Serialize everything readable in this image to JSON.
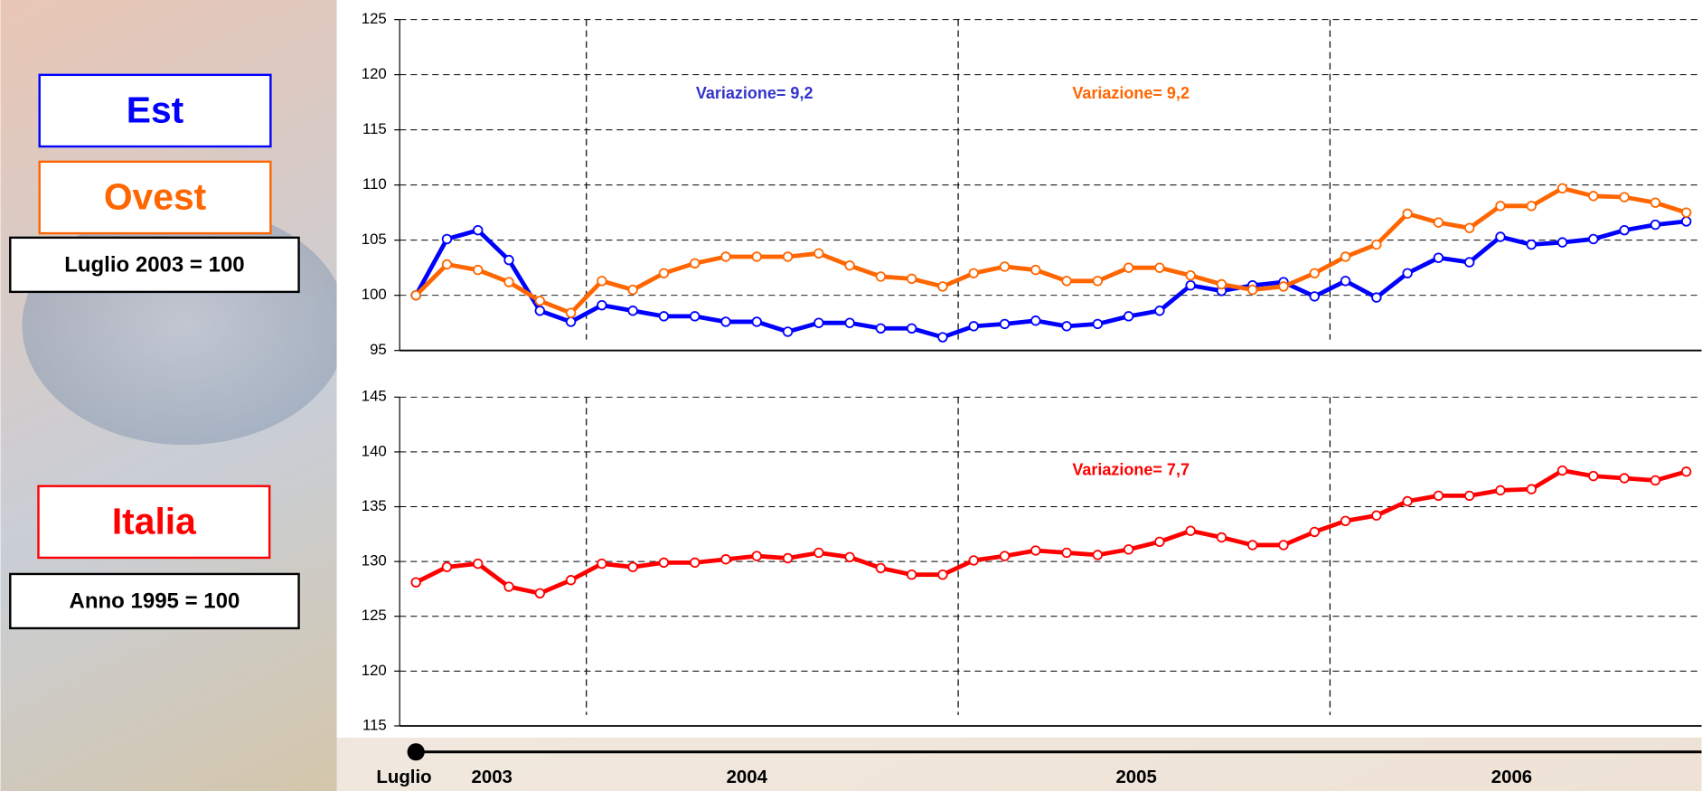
{
  "chart_data": [
    {
      "type": "line",
      "categories": [
        null,
        null,
        null,
        null,
        null,
        null,
        null,
        null,
        null,
        null,
        null,
        null,
        null,
        null,
        null,
        null,
        null,
        null,
        null,
        null,
        null,
        null,
        null,
        null,
        null,
        null,
        null,
        null,
        null,
        null,
        null,
        null,
        null,
        null,
        null,
        null,
        null,
        null,
        null,
        null,
        null,
        null
      ],
      "series": [
        {
          "name": "Est",
          "color": "#0000ff",
          "values": [
            100.0,
            105.1,
            105.9,
            103.2,
            98.6,
            97.6,
            99.1,
            98.6,
            98.1,
            98.1,
            97.6,
            97.6,
            96.7,
            97.5,
            97.5,
            97.0,
            97.0,
            96.2,
            97.2,
            97.4,
            97.7,
            97.2,
            97.4,
            98.1,
            98.6,
            100.9,
            100.4,
            100.9,
            101.2,
            99.9,
            101.3,
            99.8,
            102.0,
            103.4,
            103.0,
            105.3,
            104.6,
            104.8,
            105.1,
            105.9,
            106.4,
            106.7
          ]
        },
        {
          "name": "Ovest",
          "color": "#ff6600",
          "values": [
            100.0,
            102.8,
            102.3,
            101.2,
            99.5,
            98.4,
            101.3,
            100.5,
            102.0,
            102.9,
            103.5,
            103.5,
            103.5,
            103.8,
            102.7,
            101.7,
            101.5,
            100.8,
            102.0,
            102.6,
            102.3,
            101.3,
            101.3,
            102.5,
            102.5,
            101.8,
            101.0,
            100.5,
            100.8,
            102.0,
            103.5,
            104.6,
            107.4,
            106.6,
            106.1,
            108.1,
            108.1,
            109.7,
            109.0,
            108.9,
            108.4,
            107.5
          ]
        }
      ],
      "ylim": [
        95,
        125
      ],
      "yticks": [
        95,
        100,
        105,
        110,
        115,
        120,
        125
      ],
      "grid": true,
      "annotations": [
        {
          "text": "Variazione= 9,2",
          "color": "#3333cc"
        },
        {
          "text": "Variazione= 9,2",
          "color": "#ff6600"
        }
      ],
      "base_note": "Luglio 2003 = 100"
    },
    {
      "type": "line",
      "categories": [
        null,
        null,
        null,
        null,
        null,
        null,
        null,
        null,
        null,
        null,
        null,
        null,
        null,
        null,
        null,
        null,
        null,
        null,
        null,
        null,
        null,
        null,
        null,
        null,
        null,
        null,
        null,
        null,
        null,
        null,
        null,
        null,
        null,
        null,
        null,
        null,
        null,
        null,
        null,
        null,
        null,
        null
      ],
      "series": [
        {
          "name": "Italia",
          "color": "#ff0000",
          "values": [
            128.1,
            129.5,
            129.8,
            127.7,
            127.1,
            128.3,
            129.8,
            129.5,
            129.9,
            129.9,
            130.2,
            130.5,
            130.3,
            130.8,
            130.4,
            129.4,
            128.8,
            128.8,
            130.1,
            130.5,
            131.0,
            130.8,
            130.6,
            131.1,
            131.8,
            132.8,
            132.2,
            131.5,
            131.5,
            132.7,
            133.7,
            134.2,
            135.5,
            136.0,
            136.0,
            136.5,
            136.6,
            138.3,
            137.8,
            137.6,
            137.4,
            138.2
          ]
        }
      ],
      "ylim": [
        115,
        145
      ],
      "yticks": [
        115,
        120,
        125,
        130,
        135,
        140,
        145
      ],
      "grid": true,
      "annotations": [
        {
          "text": "Variazione= 7,7",
          "color": "#ff0000"
        }
      ],
      "base_note": "Anno 1995 = 100"
    }
  ],
  "timeline": {
    "labels": [
      "Luglio",
      "2003",
      "2004",
      "2005",
      "2006"
    ]
  }
}
